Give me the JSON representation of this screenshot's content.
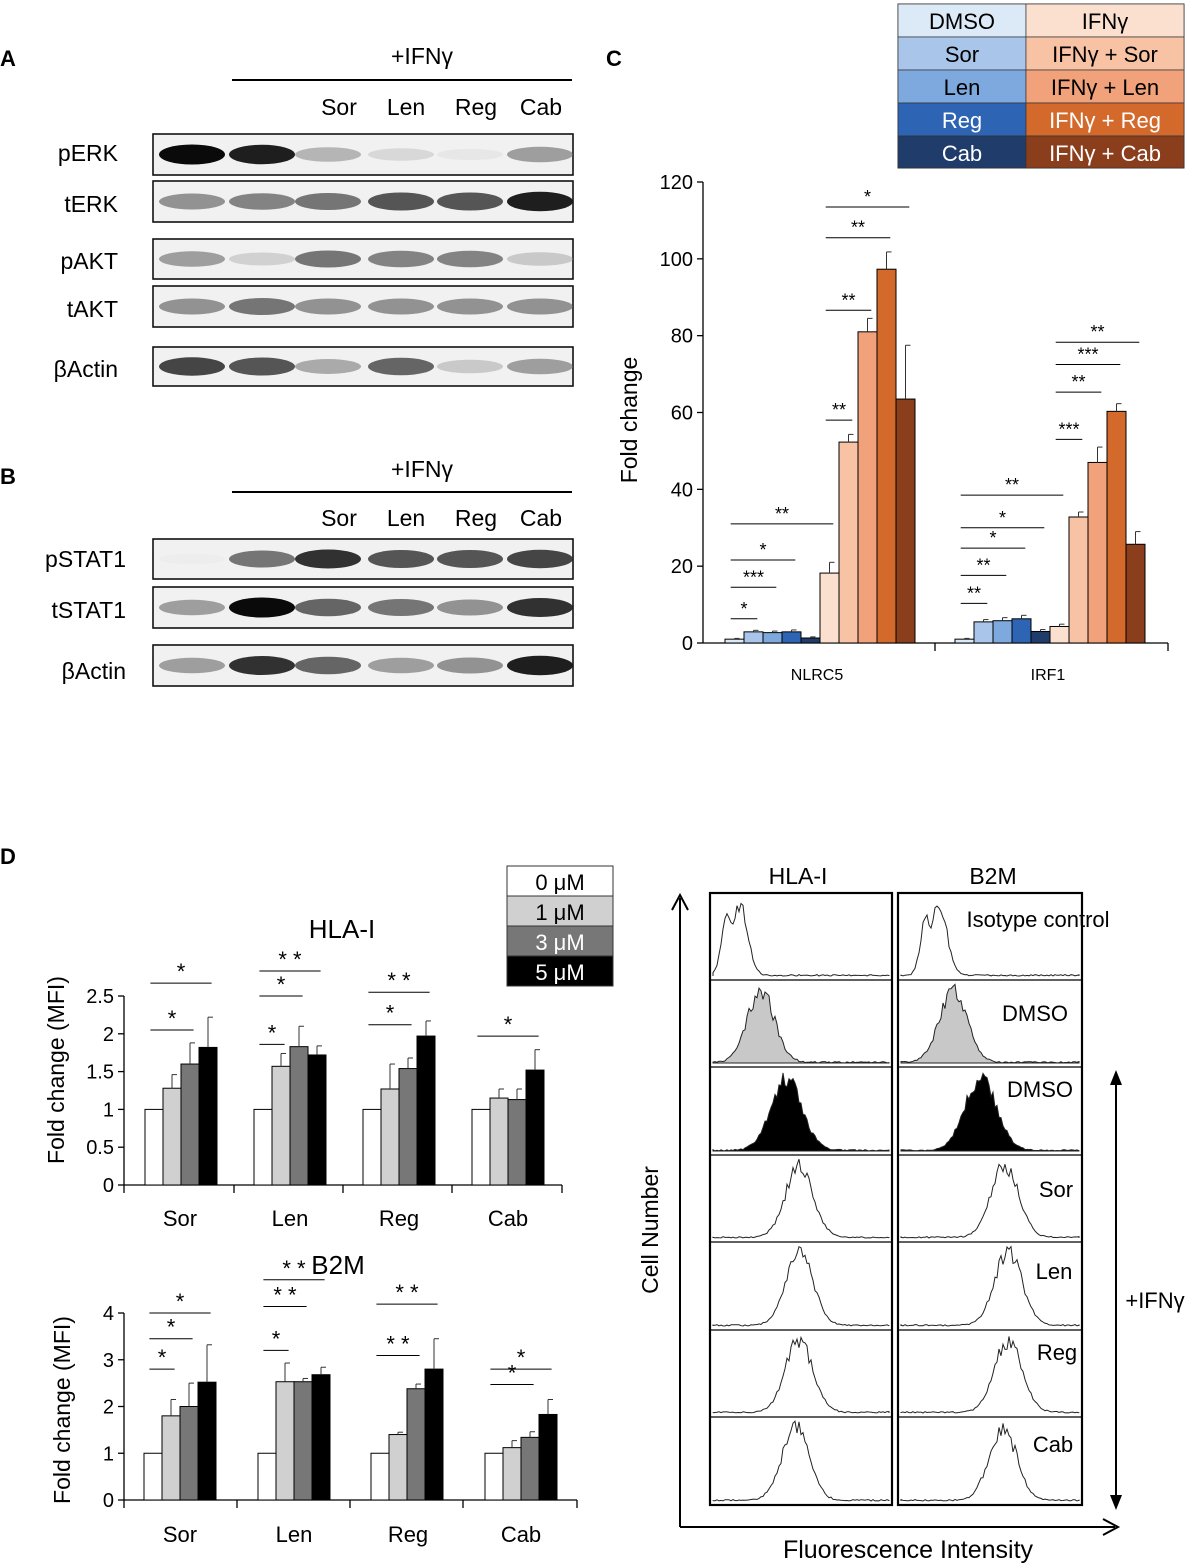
{
  "panel_labels": {
    "A": "A",
    "B": "B",
    "C": "C",
    "D": "D"
  },
  "panel_A": {
    "treatment_header": "+IFNγ",
    "lane_labels": [
      "Sor",
      "Len",
      "Reg",
      "Cab"
    ],
    "row_labels": [
      "pERK",
      "tERK",
      "pAKT",
      "tAKT",
      "βActin"
    ],
    "band_intensity": [
      [
        1.0,
        0.95,
        0.45,
        0.25,
        0.12,
        0.55
      ],
      [
        0.6,
        0.65,
        0.7,
        0.8,
        0.8,
        0.95
      ],
      [
        0.55,
        0.3,
        0.7,
        0.65,
        0.65,
        0.35
      ],
      [
        0.6,
        0.7,
        0.6,
        0.6,
        0.6,
        0.6
      ],
      [
        0.85,
        0.8,
        0.5,
        0.75,
        0.35,
        0.55
      ]
    ]
  },
  "panel_B": {
    "treatment_header": "+IFNγ",
    "lane_labels": [
      "Sor",
      "Len",
      "Reg",
      "Cab"
    ],
    "row_labels": [
      "pSTAT1",
      "tSTAT1",
      "βActin"
    ],
    "band_intensity": [
      [
        0.05,
        0.7,
        0.9,
        0.8,
        0.8,
        0.85
      ],
      [
        0.55,
        1.0,
        0.75,
        0.7,
        0.6,
        0.9
      ],
      [
        0.55,
        0.9,
        0.75,
        0.55,
        0.6,
        0.95
      ]
    ]
  },
  "legend_C": {
    "left": [
      "DMSO",
      "Sor",
      "Len",
      "Reg",
      "Cab"
    ],
    "right": [
      "IFNγ",
      "IFNγ + Sor",
      "IFNγ + Len",
      "IFNγ + Reg",
      "IFNγ + Cab"
    ],
    "left_colors": [
      "#dce9f7",
      "#a9c6ea",
      "#7ea9de",
      "#2d64b3",
      "#1f3c6b"
    ],
    "right_colors": [
      "#fbe0cf",
      "#f7c3a4",
      "#f1a27b",
      "#d36a2c",
      "#8a3e1c"
    ],
    "left_text_colors": [
      "#000000",
      "#000000",
      "#000000",
      "#ffffff",
      "#ffffff"
    ],
    "right_text_colors": [
      "#000000",
      "#000000",
      "#000000",
      "#ffffff",
      "#ffffff"
    ]
  },
  "legend_D": {
    "labels": [
      "0 μM",
      "1 μM",
      "3 μM",
      "5 μM"
    ],
    "colors": [
      "#ffffff",
      "#d0d0d0",
      "#777777",
      "#000000"
    ],
    "text_colors": [
      "#000000",
      "#000000",
      "#ffffff",
      "#ffffff"
    ]
  },
  "chart_data": [
    {
      "id": "C",
      "type": "bar",
      "ylabel": "Fold change",
      "ylim": [
        0,
        120
      ],
      "yticks": [
        0,
        20,
        40,
        60,
        80,
        100,
        120
      ],
      "categories": [
        "NLRC5",
        "IRF1"
      ],
      "series": [
        {
          "name": "DMSO",
          "color": "#dce9f7",
          "values": [
            1,
            1
          ],
          "errors": [
            0.2,
            0.2
          ]
        },
        {
          "name": "Sor",
          "color": "#a9c6ea",
          "values": [
            2.9,
            5.5
          ],
          "errors": [
            0.4,
            0.6
          ]
        },
        {
          "name": "Len",
          "color": "#7ea9de",
          "values": [
            2.7,
            5.8
          ],
          "errors": [
            0.4,
            0.8
          ]
        },
        {
          "name": "Reg",
          "color": "#2d64b3",
          "values": [
            2.9,
            6.3
          ],
          "errors": [
            0.5,
            0.9
          ]
        },
        {
          "name": "Cab",
          "color": "#1f3c6b",
          "values": [
            1.3,
            3.0
          ],
          "errors": [
            0.3,
            0.5
          ]
        },
        {
          "name": "IFNγ",
          "color": "#fbe0cf",
          "values": [
            18.2,
            4.3
          ],
          "errors": [
            2.8,
            0.6
          ]
        },
        {
          "name": "IFNγ + Sor",
          "color": "#f7c3a4",
          "values": [
            52.3,
            32.8
          ],
          "errors": [
            2.0,
            1.3
          ]
        },
        {
          "name": "IFNγ + Len",
          "color": "#f1a27b",
          "values": [
            81.0,
            47.0
          ],
          "errors": [
            3.5,
            4.0
          ]
        },
        {
          "name": "IFNγ + Reg",
          "color": "#d36a2c",
          "values": [
            97.3,
            60.3
          ],
          "errors": [
            4.5,
            2.0
          ]
        },
        {
          "name": "IFNγ + Cab",
          "color": "#8a3e1c",
          "values": [
            63.5,
            25.7
          ],
          "errors": [
            14.0,
            3.3
          ]
        }
      ],
      "significance": [
        {
          "group": 0,
          "from": 0,
          "to": 1,
          "y": 6.3,
          "label": "*"
        },
        {
          "group": 0,
          "from": 0,
          "to": 2,
          "y": 14.5,
          "label": "***"
        },
        {
          "group": 0,
          "from": 0,
          "to": 3,
          "y": 21.6,
          "label": "*"
        },
        {
          "group": 0,
          "from": 0,
          "to": 5,
          "y": 31.0,
          "label": "**"
        },
        {
          "group": 0,
          "from": 5,
          "to": 6,
          "y": 58.0,
          "label": "**"
        },
        {
          "group": 0,
          "from": 5,
          "to": 7,
          "y": 86.6,
          "label": "**"
        },
        {
          "group": 0,
          "from": 5,
          "to": 8,
          "y": 105.5,
          "label": "**"
        },
        {
          "group": 0,
          "from": 5,
          "to": 9,
          "y": 113.5,
          "label": "*"
        },
        {
          "group": 1,
          "from": 0,
          "to": 1,
          "y": 10.3,
          "label": "**"
        },
        {
          "group": 1,
          "from": 0,
          "to": 2,
          "y": 17.6,
          "label": "**"
        },
        {
          "group": 1,
          "from": 0,
          "to": 3,
          "y": 24.7,
          "label": "*"
        },
        {
          "group": 1,
          "from": 0,
          "to": 4,
          "y": 30.0,
          "label": "*"
        },
        {
          "group": 1,
          "from": 0,
          "to": 5,
          "y": 38.5,
          "label": "**"
        },
        {
          "group": 1,
          "from": 5,
          "to": 6,
          "y": 53.0,
          "label": "***"
        },
        {
          "group": 1,
          "from": 5,
          "to": 7,
          "y": 65.3,
          "label": "**"
        },
        {
          "group": 1,
          "from": 5,
          "to": 8,
          "y": 72.5,
          "label": "***"
        },
        {
          "group": 1,
          "from": 5,
          "to": 9,
          "y": 78.3,
          "label": "**"
        }
      ]
    },
    {
      "id": "D-HLA-I",
      "type": "bar",
      "title": "HLA-I",
      "ylabel": "Fold change (MFI)",
      "ylim": [
        0,
        2.5
      ],
      "yticks": [
        0,
        0.5,
        1,
        1.5,
        2,
        2.5
      ],
      "categories": [
        "Sor",
        "Len",
        "Reg",
        "Cab"
      ],
      "series": [
        {
          "name": "0 μM",
          "color": "#ffffff",
          "values": [
            1.0,
            1.0,
            1.0,
            1.0
          ],
          "errors": [
            0,
            0,
            0,
            0
          ]
        },
        {
          "name": "1 μM",
          "color": "#d0d0d0",
          "values": [
            1.28,
            1.57,
            1.27,
            1.15
          ],
          "errors": [
            0.18,
            0.17,
            0.33,
            0.12
          ]
        },
        {
          "name": "3 μM",
          "color": "#777777",
          "values": [
            1.6,
            1.83,
            1.54,
            1.13
          ],
          "errors": [
            0.28,
            0.27,
            0.14,
            0.14
          ]
        },
        {
          "name": "5 μM",
          "color": "#000000",
          "values": [
            1.82,
            1.72,
            1.97,
            1.52
          ],
          "errors": [
            0.4,
            0.12,
            0.2,
            0.27
          ]
        }
      ],
      "significance": [
        {
          "group": 0,
          "from": 0,
          "to": 2,
          "y": 2.05,
          "label": "*"
        },
        {
          "group": 0,
          "from": 0,
          "to": 3,
          "y": 2.67,
          "label": "*"
        },
        {
          "group": 1,
          "from": 0,
          "to": 1,
          "y": 1.86,
          "label": "*"
        },
        {
          "group": 1,
          "from": 0,
          "to": 2,
          "y": 2.5,
          "label": "*"
        },
        {
          "group": 1,
          "from": 0,
          "to": 3,
          "y": 2.83,
          "label": "* *"
        },
        {
          "group": 2,
          "from": 0,
          "to": 2,
          "y": 2.12,
          "label": "*"
        },
        {
          "group": 2,
          "from": 0,
          "to": 3,
          "y": 2.55,
          "label": "* *"
        },
        {
          "group": 3,
          "from": 0,
          "to": 3,
          "y": 1.97,
          "label": "*"
        }
      ]
    },
    {
      "id": "D-B2M",
      "type": "bar",
      "title": "B2M",
      "ylabel": "Fold change (MFI)",
      "ylim": [
        0,
        4
      ],
      "yticks": [
        0,
        1,
        2,
        3,
        4
      ],
      "categories": [
        "Sor",
        "Len",
        "Reg",
        "Cab"
      ],
      "series": [
        {
          "name": "0 μM",
          "color": "#ffffff",
          "values": [
            1.0,
            1.0,
            1.0,
            1.0
          ],
          "errors": [
            0,
            0,
            0,
            0
          ]
        },
        {
          "name": "1 μM",
          "color": "#d0d0d0",
          "values": [
            1.8,
            2.53,
            1.4,
            1.12
          ],
          "errors": [
            0.35,
            0.4,
            0.05,
            0.15
          ]
        },
        {
          "name": "3 μM",
          "color": "#777777",
          "values": [
            2.0,
            2.53,
            2.38,
            1.34
          ],
          "errors": [
            0.5,
            0.07,
            0.1,
            0.12
          ]
        },
        {
          "name": "5 μM",
          "color": "#000000",
          "values": [
            2.52,
            2.68,
            2.8,
            1.83
          ],
          "errors": [
            0.8,
            0.16,
            0.65,
            0.32
          ]
        }
      ],
      "significance": [
        {
          "group": 0,
          "from": 0,
          "to": 1,
          "y": 2.8,
          "label": "*"
        },
        {
          "group": 0,
          "from": 0,
          "to": 2,
          "y": 3.45,
          "label": "*"
        },
        {
          "group": 0,
          "from": 0,
          "to": 3,
          "y": 4.0,
          "label": "*"
        },
        {
          "group": 1,
          "from": 0,
          "to": 1,
          "y": 3.2,
          "label": "*"
        },
        {
          "group": 1,
          "from": 0,
          "to": 2,
          "y": 4.14,
          "label": "* *"
        },
        {
          "group": 1,
          "from": 0,
          "to": 3,
          "y": 4.71,
          "label": "* *"
        },
        {
          "group": 2,
          "from": 0,
          "to": 2,
          "y": 3.09,
          "label": "* *"
        },
        {
          "group": 2,
          "from": 0,
          "to": 3,
          "y": 4.19,
          "label": "* *"
        },
        {
          "group": 3,
          "from": 0,
          "to": 2,
          "y": 2.47,
          "label": "*"
        },
        {
          "group": 3,
          "from": 0,
          "to": 3,
          "y": 2.8,
          "label": "*"
        }
      ]
    }
  ],
  "flow": {
    "columns": [
      "HLA-I",
      "B2M"
    ],
    "row_labels": [
      "Isotype control",
      "DMSO",
      "DMSO",
      "Sor",
      "Len",
      "Reg",
      "Cab"
    ],
    "row_styles": [
      "outline",
      "gray",
      "black",
      "outline",
      "outline",
      "outline",
      "outline"
    ],
    "peak_pos": [
      [
        0.16,
        0.22
      ],
      [
        0.28,
        0.3
      ],
      [
        0.42,
        0.45
      ],
      [
        0.49,
        0.58
      ],
      [
        0.49,
        0.6
      ],
      [
        0.49,
        0.6
      ],
      [
        0.47,
        0.57
      ]
    ],
    "xlabel": "Fluorescence Intensity",
    "ylabel": "Cell Number",
    "bracket_label": "+IFNγ"
  }
}
